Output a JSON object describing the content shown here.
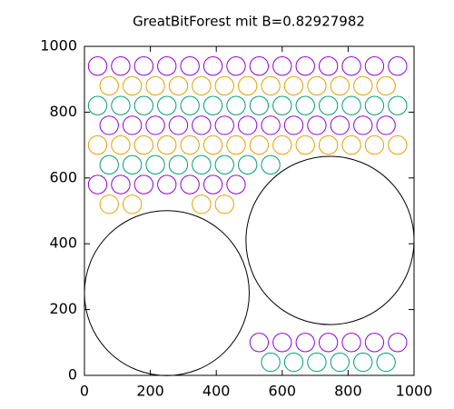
{
  "chart_data": {
    "type": "circles",
    "title": "GreatBitForest mit B=0.82927982",
    "xlim": [
      0,
      1000
    ],
    "ylim": [
      0,
      1000
    ],
    "xticks": [
      0,
      200,
      400,
      600,
      800,
      1000
    ],
    "yticks": [
      0,
      200,
      400,
      600,
      800,
      1000
    ],
    "grid": false,
    "series": [
      {
        "color": "#000000",
        "x": [
          250,
          745
        ],
        "y": [
          250,
          410
        ],
        "r": [
          250,
          255
        ]
      },
      {
        "color": "#9400d3",
        "x": [
          40,
          110,
          180,
          250,
          320,
          390,
          460,
          530,
          600,
          670,
          740,
          810,
          880,
          950,
          75,
          145,
          215,
          285,
          355,
          425,
          495,
          565,
          635,
          705,
          775,
          845,
          915,
          40,
          110,
          180,
          250,
          320,
          390,
          460,
          530,
          600,
          670,
          740,
          810,
          880,
          950
        ],
        "y": [
          940,
          940,
          940,
          940,
          940,
          940,
          940,
          940,
          940,
          940,
          940,
          940,
          940,
          940,
          760,
          760,
          760,
          760,
          760,
          760,
          760,
          760,
          760,
          760,
          760,
          760,
          760,
          580,
          580,
          580,
          580,
          580,
          580,
          580,
          100,
          100,
          100,
          100,
          100,
          100,
          100
        ],
        "r": [
          28,
          28,
          28,
          28,
          28,
          28,
          28,
          28,
          28,
          28,
          28,
          28,
          28,
          28,
          28,
          28,
          28,
          28,
          28,
          28,
          28,
          28,
          28,
          28,
          28,
          28,
          28,
          28,
          28,
          28,
          28,
          28,
          28,
          28,
          28,
          28,
          28,
          28,
          28,
          28,
          28
        ]
      },
      {
        "color": "#e69f00",
        "x": [
          75,
          145,
          215,
          285,
          355,
          425,
          495,
          565,
          635,
          705,
          775,
          845,
          915,
          40,
          110,
          180,
          250,
          320,
          390,
          460,
          530,
          600,
          670,
          740,
          810,
          880,
          950,
          75,
          145,
          355,
          425
        ],
        "y": [
          880,
          880,
          880,
          880,
          880,
          880,
          880,
          880,
          880,
          880,
          880,
          880,
          880,
          700,
          700,
          700,
          700,
          700,
          700,
          700,
          700,
          700,
          700,
          700,
          700,
          700,
          700,
          520,
          520,
          520,
          520
        ],
        "r": [
          28,
          28,
          28,
          28,
          28,
          28,
          28,
          28,
          28,
          28,
          28,
          28,
          28,
          28,
          28,
          28,
          28,
          28,
          28,
          28,
          28,
          28,
          28,
          28,
          28,
          28,
          28,
          28,
          28,
          28,
          28
        ]
      },
      {
        "color": "#009e73",
        "x": [
          40,
          110,
          180,
          250,
          320,
          390,
          460,
          530,
          600,
          670,
          740,
          810,
          880,
          950,
          75,
          145,
          215,
          285,
          355,
          425,
          495,
          565,
          565,
          635,
          705,
          775,
          845,
          915
        ],
        "y": [
          820,
          820,
          820,
          820,
          820,
          820,
          820,
          820,
          820,
          820,
          820,
          820,
          820,
          820,
          640,
          640,
          640,
          640,
          640,
          640,
          640,
          640,
          40,
          40,
          40,
          40,
          40,
          40
        ],
        "r": [
          28,
          28,
          28,
          28,
          28,
          28,
          28,
          28,
          28,
          28,
          28,
          28,
          28,
          28,
          28,
          28,
          28,
          28,
          28,
          28,
          28,
          28,
          28,
          28,
          28,
          28,
          28,
          28
        ]
      }
    ]
  }
}
